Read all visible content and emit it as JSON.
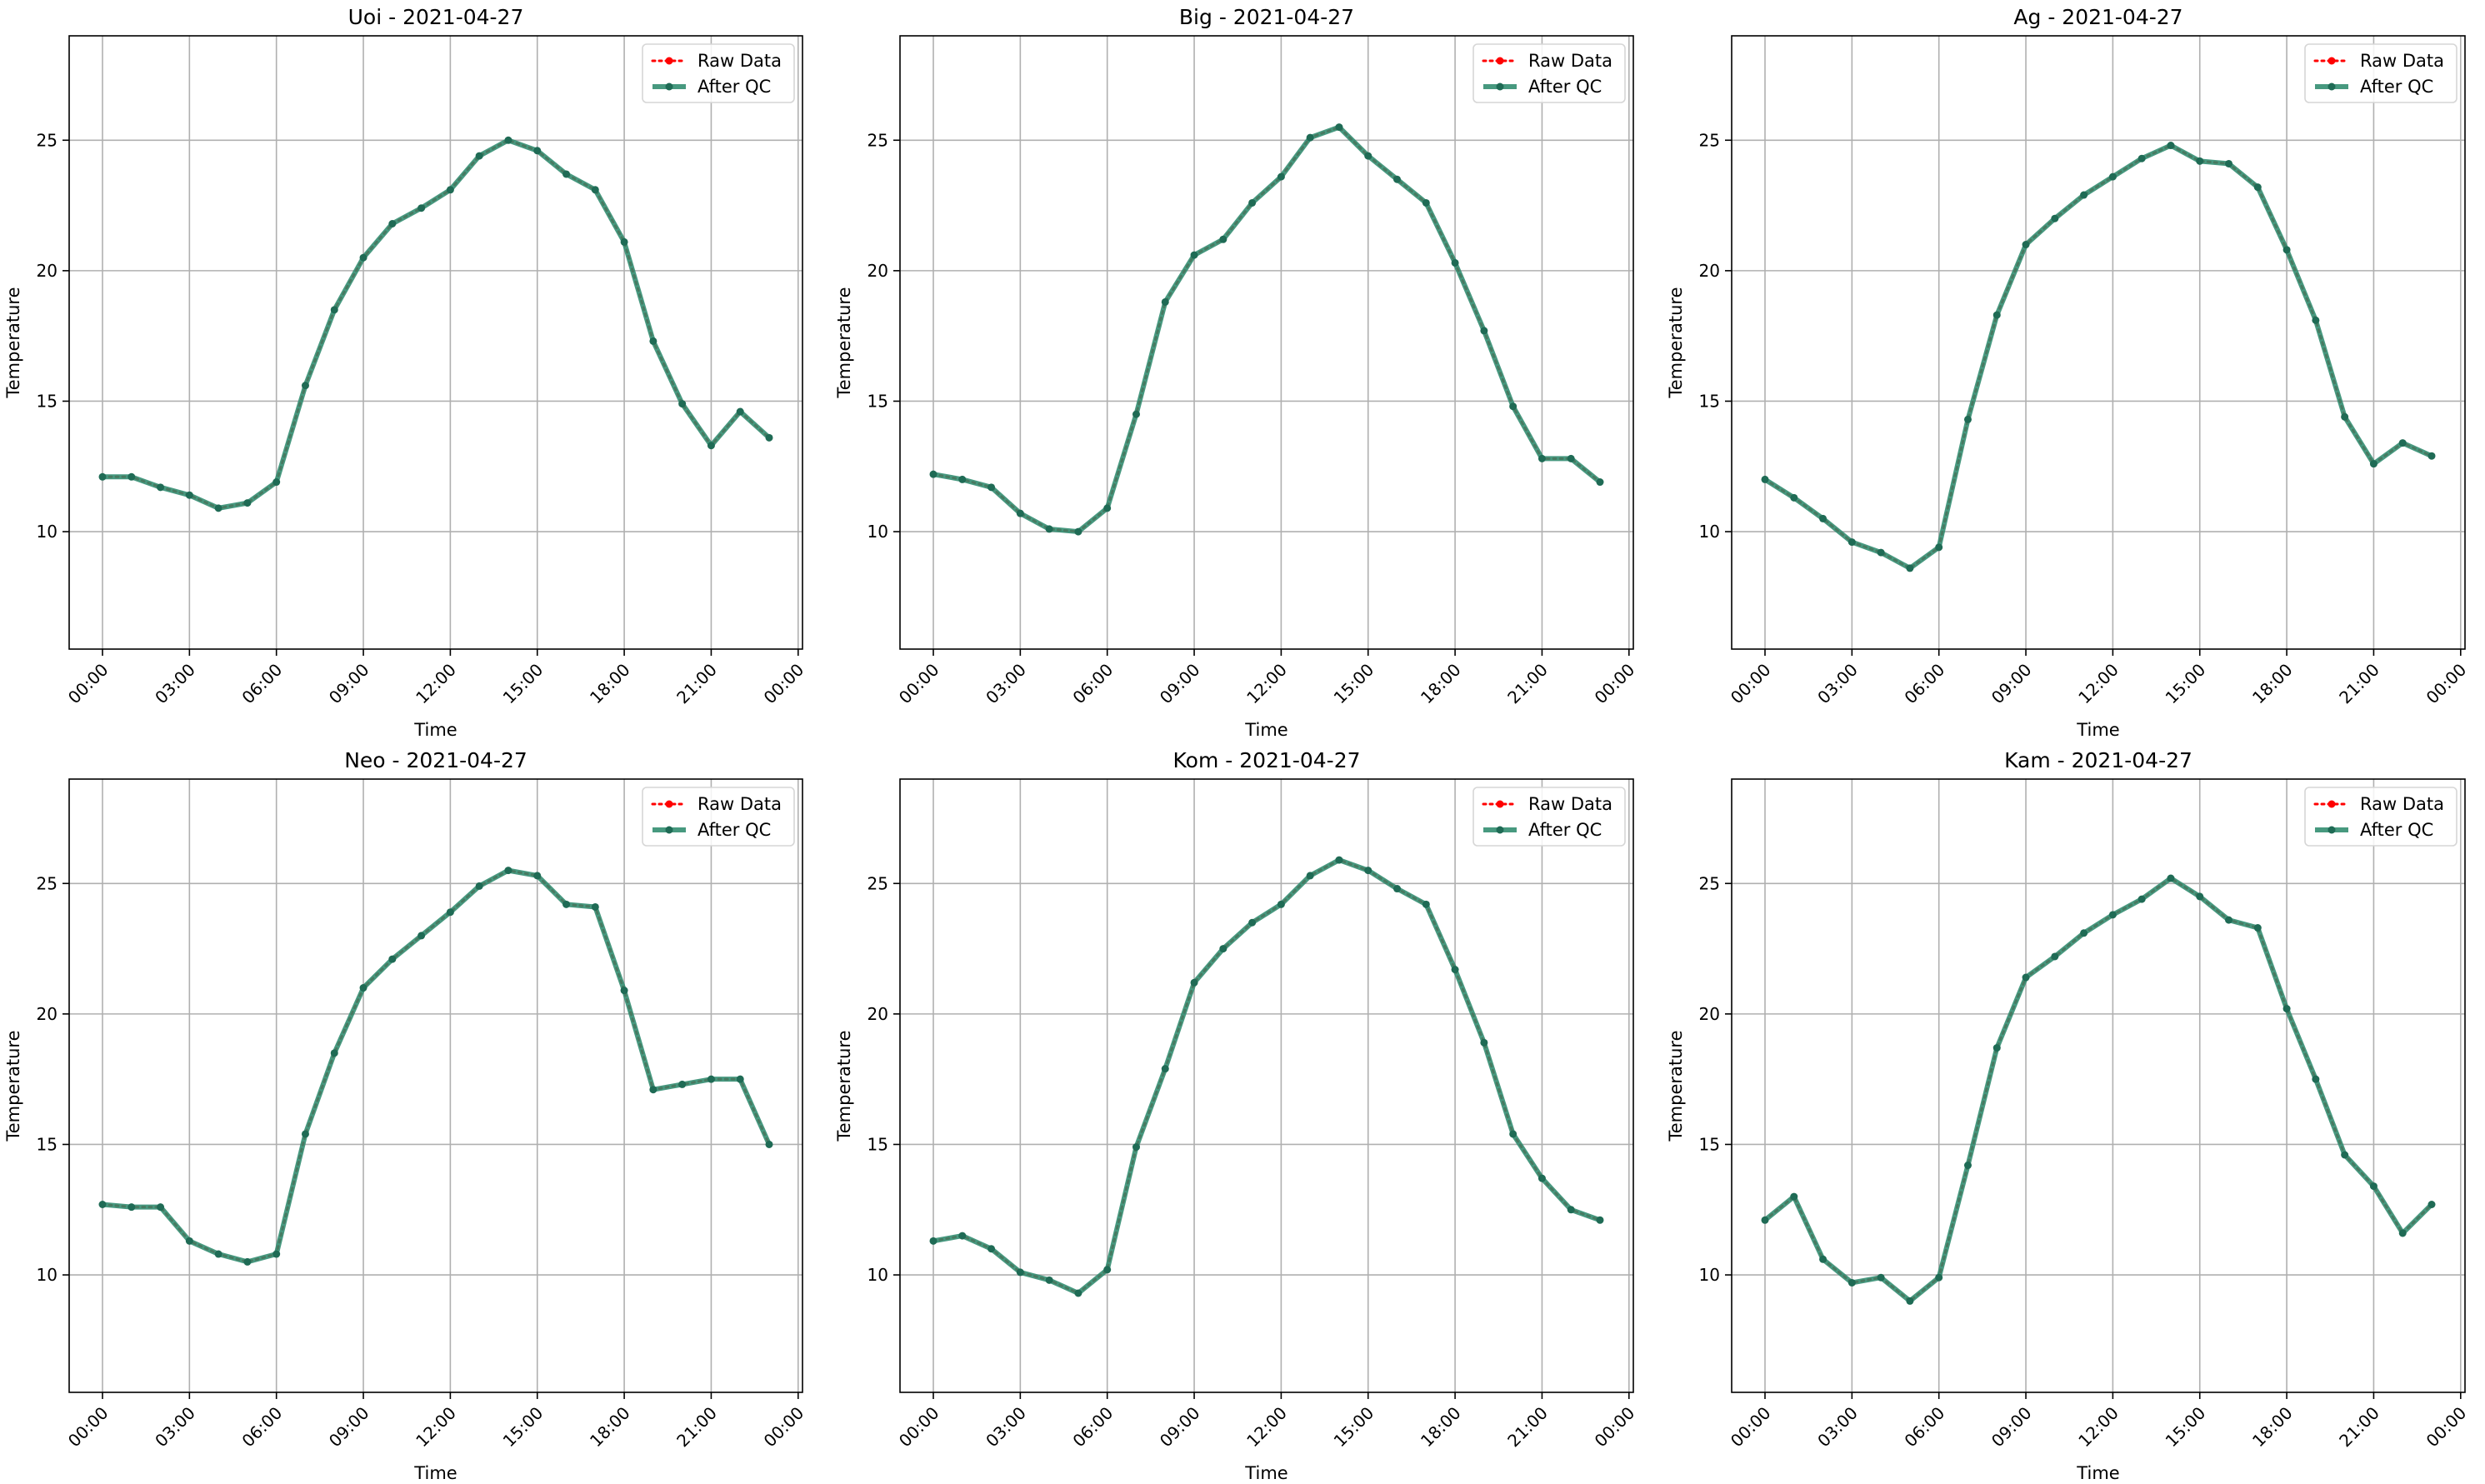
{
  "figure": {
    "background": "#ffffff"
  },
  "style": {
    "raw_color": "#ff0000",
    "qc_color": "#2e8b6e",
    "qc_marker_color": "#1f6b55",
    "grid_color": "#b0b0b0",
    "axis_color": "#000000"
  },
  "chart_data": [
    {
      "type": "line",
      "title": "Uoi - 2021-04-27",
      "xlabel": "Time",
      "ylabel": "Temperature",
      "x_ticks": [
        "00:00",
        "03:00",
        "06:00",
        "09:00",
        "12:00",
        "15:00",
        "18:00",
        "21:00",
        "00:00"
      ],
      "y_ticks": [
        10,
        15,
        20,
        25
      ],
      "xlim": [
        -1.15,
        24.15
      ],
      "ylim": [
        5.5,
        29.0
      ],
      "grid": true,
      "legend_position": "upper right",
      "x": [
        0,
        1,
        2,
        3,
        4,
        5,
        6,
        7,
        8,
        9,
        10,
        11,
        12,
        13,
        14,
        15,
        16,
        17,
        18,
        19,
        20,
        21,
        22,
        23
      ],
      "series": [
        {
          "name": "Raw Data",
          "values": [
            12.1,
            12.1,
            11.7,
            11.4,
            10.9,
            11.1,
            11.9,
            15.6,
            18.5,
            20.5,
            21.8,
            22.4,
            23.1,
            24.4,
            25.0,
            24.6,
            23.7,
            23.1,
            21.1,
            17.3,
            14.9,
            13.3,
            14.6,
            13.6
          ]
        },
        {
          "name": "After QC",
          "values": [
            12.1,
            12.1,
            11.7,
            11.4,
            10.9,
            11.1,
            11.9,
            15.6,
            18.5,
            20.5,
            21.8,
            22.4,
            23.1,
            24.4,
            25.0,
            24.6,
            23.7,
            23.1,
            21.1,
            17.3,
            14.9,
            13.3,
            14.6,
            13.6
          ]
        }
      ]
    },
    {
      "type": "line",
      "title": "Big - 2021-04-27",
      "xlabel": "Time",
      "ylabel": "Temperature",
      "x_ticks": [
        "00:00",
        "03:00",
        "06:00",
        "09:00",
        "12:00",
        "15:00",
        "18:00",
        "21:00",
        "00:00"
      ],
      "y_ticks": [
        10,
        15,
        20,
        25
      ],
      "xlim": [
        -1.15,
        24.15
      ],
      "ylim": [
        5.5,
        29.0
      ],
      "grid": true,
      "legend_position": "upper right",
      "x": [
        0,
        1,
        2,
        3,
        4,
        5,
        6,
        7,
        8,
        9,
        10,
        11,
        12,
        13,
        14,
        15,
        16,
        17,
        18,
        19,
        20,
        21,
        22,
        23
      ],
      "series": [
        {
          "name": "Raw Data",
          "values": [
            12.2,
            12.0,
            11.7,
            10.7,
            10.1,
            10.0,
            10.9,
            14.5,
            18.8,
            20.6,
            21.2,
            22.6,
            23.6,
            25.1,
            25.5,
            24.4,
            23.5,
            22.6,
            20.3,
            17.7,
            14.8,
            12.8,
            12.8,
            11.9
          ]
        },
        {
          "name": "After QC",
          "values": [
            12.2,
            12.0,
            11.7,
            10.7,
            10.1,
            10.0,
            10.9,
            14.5,
            18.8,
            20.6,
            21.2,
            22.6,
            23.6,
            25.1,
            25.5,
            24.4,
            23.5,
            22.6,
            20.3,
            17.7,
            14.8,
            12.8,
            12.8,
            11.9
          ]
        }
      ]
    },
    {
      "type": "line",
      "title": "Ag - 2021-04-27",
      "xlabel": "Time",
      "ylabel": "Temperature",
      "x_ticks": [
        "00:00",
        "03:00",
        "06:00",
        "09:00",
        "12:00",
        "15:00",
        "18:00",
        "21:00",
        "00:00"
      ],
      "y_ticks": [
        10,
        15,
        20,
        25
      ],
      "xlim": [
        -1.15,
        24.15
      ],
      "ylim": [
        5.5,
        29.0
      ],
      "grid": true,
      "legend_position": "upper right",
      "x": [
        0,
        1,
        2,
        3,
        4,
        5,
        6,
        7,
        8,
        9,
        10,
        11,
        12,
        13,
        14,
        15,
        16,
        17,
        18,
        19,
        20,
        21,
        22,
        23
      ],
      "series": [
        {
          "name": "Raw Data",
          "values": [
            12.0,
            11.3,
            10.5,
            9.6,
            9.2,
            8.6,
            9.4,
            14.3,
            18.3,
            21.0,
            22.0,
            22.9,
            23.6,
            24.3,
            24.8,
            24.2,
            24.1,
            23.2,
            20.8,
            18.1,
            14.4,
            12.6,
            13.4,
            12.9
          ]
        },
        {
          "name": "After QC",
          "values": [
            12.0,
            11.3,
            10.5,
            9.6,
            9.2,
            8.6,
            9.4,
            14.3,
            18.3,
            21.0,
            22.0,
            22.9,
            23.6,
            24.3,
            24.8,
            24.2,
            24.1,
            23.2,
            20.8,
            18.1,
            14.4,
            12.6,
            13.4,
            12.9
          ]
        }
      ]
    },
    {
      "type": "line",
      "title": "Neo - 2021-04-27",
      "xlabel": "Time",
      "ylabel": "Temperature",
      "x_ticks": [
        "00:00",
        "03:00",
        "06:00",
        "09:00",
        "12:00",
        "15:00",
        "18:00",
        "21:00",
        "00:00"
      ],
      "y_ticks": [
        10,
        15,
        20,
        25
      ],
      "xlim": [
        -1.15,
        24.15
      ],
      "ylim": [
        5.5,
        29.0
      ],
      "grid": true,
      "legend_position": "upper right",
      "x": [
        0,
        1,
        2,
        3,
        4,
        5,
        6,
        7,
        8,
        9,
        10,
        11,
        12,
        13,
        14,
        15,
        16,
        17,
        18,
        19,
        20,
        21,
        22,
        23
      ],
      "series": [
        {
          "name": "Raw Data",
          "values": [
            12.7,
            12.6,
            12.6,
            11.3,
            10.8,
            10.5,
            10.8,
            15.4,
            18.5,
            21.0,
            22.1,
            23.0,
            23.9,
            24.9,
            25.5,
            25.3,
            24.2,
            24.1,
            20.9,
            17.1,
            17.3,
            17.5,
            17.5,
            15.0
          ]
        },
        {
          "name": "After QC",
          "values": [
            12.7,
            12.6,
            12.6,
            11.3,
            10.8,
            10.5,
            10.8,
            15.4,
            18.5,
            21.0,
            22.1,
            23.0,
            23.9,
            24.9,
            25.5,
            25.3,
            24.2,
            24.1,
            20.9,
            17.1,
            17.3,
            17.5,
            17.5,
            15.0
          ]
        }
      ]
    },
    {
      "type": "line",
      "title": "Kom - 2021-04-27",
      "xlabel": "Time",
      "ylabel": "Temperature",
      "x_ticks": [
        "00:00",
        "03:00",
        "06:00",
        "09:00",
        "12:00",
        "15:00",
        "18:00",
        "21:00",
        "00:00"
      ],
      "y_ticks": [
        10,
        15,
        20,
        25
      ],
      "xlim": [
        -1.15,
        24.15
      ],
      "ylim": [
        5.5,
        29.0
      ],
      "grid": true,
      "legend_position": "upper right",
      "x": [
        0,
        1,
        2,
        3,
        4,
        5,
        6,
        7,
        8,
        9,
        10,
        11,
        12,
        13,
        14,
        15,
        16,
        17,
        18,
        19,
        20,
        21,
        22,
        23
      ],
      "series": [
        {
          "name": "Raw Data",
          "values": [
            11.3,
            11.5,
            11.0,
            10.1,
            9.8,
            9.3,
            10.2,
            14.9,
            17.9,
            21.2,
            22.5,
            23.5,
            24.2,
            25.3,
            25.9,
            25.5,
            24.8,
            24.2,
            21.7,
            18.9,
            15.4,
            13.7,
            12.5,
            12.1
          ]
        },
        {
          "name": "After QC",
          "values": [
            11.3,
            11.5,
            11.0,
            10.1,
            9.8,
            9.3,
            10.2,
            14.9,
            17.9,
            21.2,
            22.5,
            23.5,
            24.2,
            25.3,
            25.9,
            25.5,
            24.8,
            24.2,
            21.7,
            18.9,
            15.4,
            13.7,
            12.5,
            12.1
          ]
        }
      ]
    },
    {
      "type": "line",
      "title": "Kam - 2021-04-27",
      "xlabel": "Time",
      "ylabel": "Temperature",
      "x_ticks": [
        "00:00",
        "03:00",
        "06:00",
        "09:00",
        "12:00",
        "15:00",
        "18:00",
        "21:00",
        "00:00"
      ],
      "y_ticks": [
        10,
        15,
        20,
        25
      ],
      "xlim": [
        -1.15,
        24.15
      ],
      "ylim": [
        5.5,
        29.0
      ],
      "grid": true,
      "legend_position": "upper right",
      "x": [
        0,
        1,
        2,
        3,
        4,
        5,
        6,
        7,
        8,
        9,
        10,
        11,
        12,
        13,
        14,
        15,
        16,
        17,
        18,
        19,
        20,
        21,
        22,
        23
      ],
      "series": [
        {
          "name": "Raw Data",
          "values": [
            12.1,
            13.0,
            10.6,
            9.7,
            9.9,
            9.0,
            9.9,
            14.2,
            18.7,
            21.4,
            22.2,
            23.1,
            23.8,
            24.4,
            25.2,
            24.5,
            23.6,
            23.3,
            20.2,
            17.5,
            14.6,
            13.4,
            11.6,
            12.7
          ]
        },
        {
          "name": "After QC",
          "values": [
            12.1,
            13.0,
            10.6,
            9.7,
            9.9,
            9.0,
            9.9,
            14.2,
            18.7,
            21.4,
            22.2,
            23.1,
            23.8,
            24.4,
            25.2,
            24.5,
            23.6,
            23.3,
            20.2,
            17.5,
            14.6,
            13.4,
            11.6,
            12.7
          ]
        }
      ]
    }
  ]
}
